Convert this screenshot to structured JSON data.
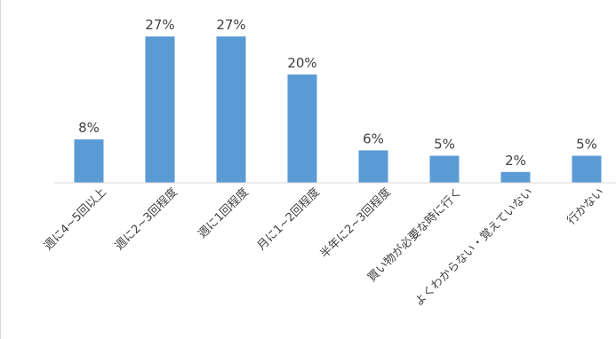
{
  "chart_data": {
    "type": "bar",
    "categories": [
      "週に4~5回以上",
      "週に2~3回程度",
      "週に1回程度",
      "月に1~2回程度",
      "半年に2~3回程度",
      "買い物が必要な時に行く",
      "よくわからない・覚えていない",
      "行かない"
    ],
    "values": [
      8,
      27,
      27,
      20,
      6,
      5,
      2,
      5
    ],
    "value_labels": [
      "8%",
      "27%",
      "27%",
      "20%",
      "6%",
      "5%",
      "2%",
      "5%"
    ],
    "unit": "%",
    "ylim": [
      0,
      28
    ],
    "bar_color": "#5b9bd5",
    "grid": false,
    "legend": "none"
  }
}
